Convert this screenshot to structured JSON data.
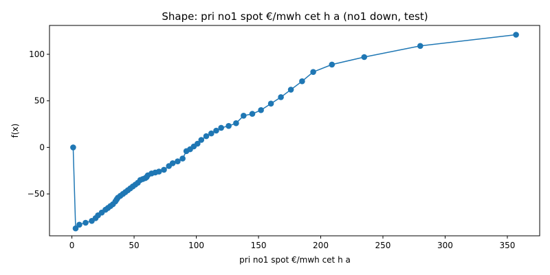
{
  "chart_data": {
    "type": "line",
    "title": "Shape: pri no1 spot €/mwh cet h a (no1 down, test)",
    "xlabel": "pri no1 spot €/mwh cet h a",
    "ylabel": "f(x)",
    "xlim": [
      -18,
      376
    ],
    "ylim": [
      -95,
      131
    ],
    "xticks": [
      0,
      50,
      100,
      150,
      200,
      250,
      300,
      350
    ],
    "yticks": [
      -50,
      0,
      50,
      100
    ],
    "ytick_labels": [
      "−50",
      "0",
      "50",
      "100"
    ],
    "grid": false,
    "color": "#1f77b4",
    "series": [
      {
        "marker": "circle",
        "x": [
          1,
          3,
          6,
          11,
          16,
          19,
          21,
          24,
          27,
          29,
          31,
          33,
          35,
          36,
          37,
          39,
          41,
          43,
          45,
          47,
          49,
          51,
          53,
          55,
          57,
          59,
          60,
          61,
          64,
          67,
          70,
          74,
          78,
          81,
          85,
          89,
          92,
          95,
          98,
          101,
          104,
          108,
          112,
          116,
          120,
          126,
          132,
          138,
          145,
          152,
          160,
          168,
          176,
          185,
          194,
          209,
          235,
          280,
          357
        ],
        "y": [
          0,
          -87,
          -83,
          -81,
          -79,
          -76,
          -73,
          -70,
          -67,
          -65,
          -63,
          -61,
          -58,
          -56,
          -54,
          -52,
          -50,
          -48,
          -46,
          -44,
          -42,
          -40,
          -38,
          -35,
          -34,
          -33,
          -32,
          -30,
          -28,
          -27,
          -26,
          -24,
          -20,
          -17,
          -15,
          -12,
          -4,
          -2,
          1,
          4,
          8,
          12,
          15,
          18,
          21,
          23,
          26,
          34,
          36,
          40,
          47,
          54,
          62,
          71,
          81,
          89,
          97,
          109,
          121
        ]
      }
    ]
  }
}
